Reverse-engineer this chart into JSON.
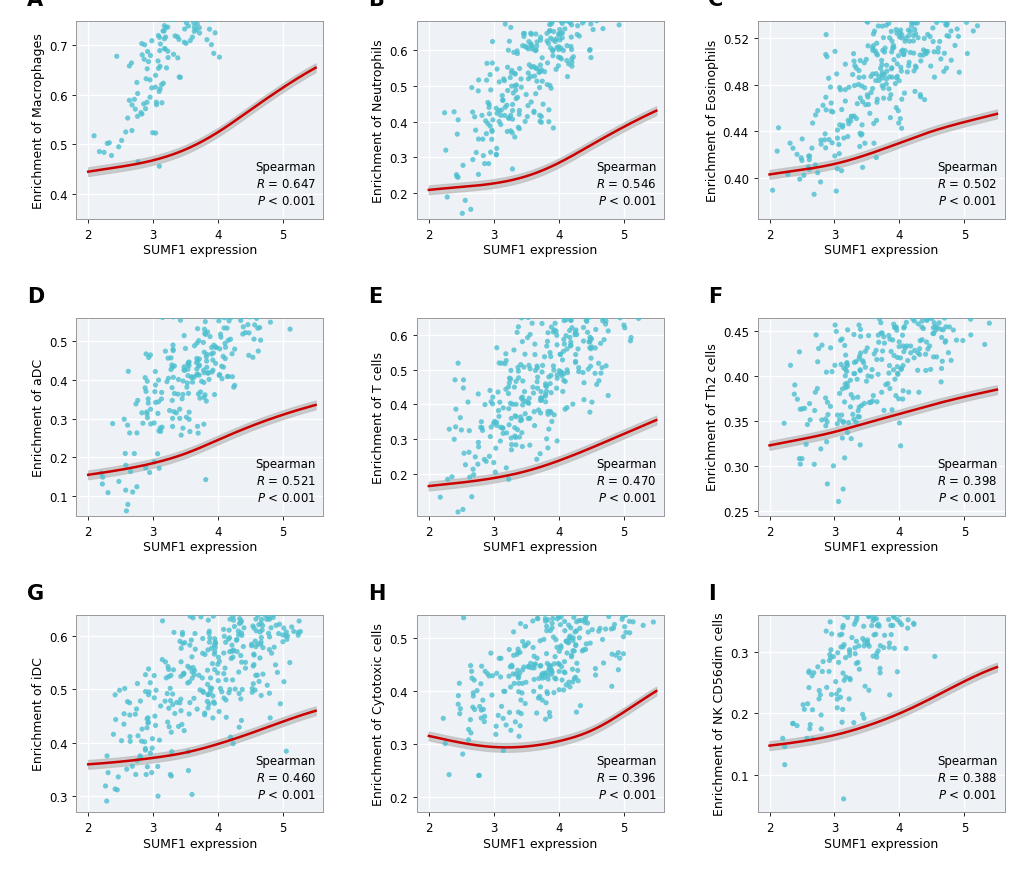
{
  "panels": [
    {
      "label": "A",
      "ylabel": "Enrichment of Macrophages",
      "R": "0.647",
      "ylim": [
        0.35,
        0.75
      ],
      "yticks": [
        0.4,
        0.5,
        0.6,
        0.7
      ],
      "curve_pts_x": [
        2.0,
        2.5,
        3.0,
        3.5,
        4.0,
        4.5,
        5.0,
        5.5
      ],
      "curve_pts_y": [
        0.445,
        0.455,
        0.468,
        0.49,
        0.525,
        0.57,
        0.615,
        0.655
      ],
      "scatter_seed": 101,
      "scatter_noise": 0.07,
      "scatter_base": 0.445,
      "scatter_slope": 0.21
    },
    {
      "label": "B",
      "ylabel": "Enrichment of Neutrophils",
      "R": "0.546",
      "ylim": [
        0.13,
        0.68
      ],
      "yticks": [
        0.2,
        0.3,
        0.4,
        0.5,
        0.6
      ],
      "curve_pts_x": [
        2.0,
        2.5,
        3.0,
        3.5,
        4.0,
        4.5,
        5.0,
        5.5
      ],
      "curve_pts_y": [
        0.21,
        0.218,
        0.228,
        0.248,
        0.285,
        0.335,
        0.385,
        0.43
      ],
      "scatter_seed": 202,
      "scatter_noise": 0.085,
      "scatter_base": 0.2,
      "scatter_slope": 0.22
    },
    {
      "label": "C",
      "ylabel": "Enrichment of Eosinophils",
      "R": "0.502",
      "ylim": [
        0.365,
        0.535
      ],
      "yticks": [
        0.4,
        0.44,
        0.48,
        0.52
      ],
      "curve_pts_x": [
        2.0,
        2.5,
        3.0,
        3.5,
        4.0,
        4.5,
        5.0,
        5.5
      ],
      "curve_pts_y": [
        0.403,
        0.407,
        0.412,
        0.42,
        0.43,
        0.44,
        0.448,
        0.455
      ],
      "scatter_seed": 303,
      "scatter_noise": 0.028,
      "scatter_base": 0.4,
      "scatter_slope": 0.055
    },
    {
      "label": "D",
      "ylabel": "Enrichment of aDC",
      "R": "0.521",
      "ylim": [
        0.05,
        0.56
      ],
      "yticks": [
        0.1,
        0.2,
        0.3,
        0.4,
        0.5
      ],
      "curve_pts_x": [
        2.0,
        2.5,
        3.0,
        3.5,
        4.0,
        4.5,
        5.0,
        5.5
      ],
      "curve_pts_y": [
        0.155,
        0.168,
        0.185,
        0.21,
        0.245,
        0.28,
        0.31,
        0.335
      ],
      "scatter_seed": 404,
      "scatter_noise": 0.095,
      "scatter_base": 0.145,
      "scatter_slope": 0.19
    },
    {
      "label": "E",
      "ylabel": "Enrichment of T cells",
      "R": "0.470",
      "ylim": [
        0.08,
        0.65
      ],
      "yticks": [
        0.2,
        0.3,
        0.4,
        0.5,
        0.6
      ],
      "curve_pts_x": [
        2.0,
        2.5,
        3.0,
        3.5,
        4.0,
        4.5,
        5.0,
        5.5
      ],
      "curve_pts_y": [
        0.165,
        0.175,
        0.188,
        0.208,
        0.238,
        0.275,
        0.315,
        0.355
      ],
      "scatter_seed": 505,
      "scatter_noise": 0.1,
      "scatter_base": 0.155,
      "scatter_slope": 0.19
    },
    {
      "label": "F",
      "ylabel": "Enrichment of Th2 cells",
      "R": "0.398",
      "ylim": [
        0.245,
        0.465
      ],
      "yticks": [
        0.25,
        0.3,
        0.35,
        0.4,
        0.45
      ],
      "curve_pts_x": [
        2.0,
        2.5,
        3.0,
        3.5,
        4.0,
        4.5,
        5.0,
        5.5
      ],
      "curve_pts_y": [
        0.323,
        0.33,
        0.338,
        0.348,
        0.358,
        0.368,
        0.377,
        0.385
      ],
      "scatter_seed": 606,
      "scatter_noise": 0.042,
      "scatter_base": 0.318,
      "scatter_slope": 0.062
    },
    {
      "label": "G",
      "ylabel": "Enrichment of iDC",
      "R": "0.460",
      "ylim": [
        0.27,
        0.64
      ],
      "yticks": [
        0.3,
        0.4,
        0.5,
        0.6
      ],
      "curve_pts_x": [
        2.0,
        2.5,
        3.0,
        3.5,
        4.0,
        4.5,
        5.0,
        5.5
      ],
      "curve_pts_y": [
        0.36,
        0.365,
        0.372,
        0.382,
        0.398,
        0.418,
        0.44,
        0.46
      ],
      "scatter_seed": 707,
      "scatter_noise": 0.07,
      "scatter_base": 0.355,
      "scatter_slope": 0.1
    },
    {
      "label": "H",
      "ylabel": "Enrichment of Cytotoxic cells",
      "R": "0.396",
      "ylim": [
        0.17,
        0.545
      ],
      "yticks": [
        0.2,
        0.3,
        0.4,
        0.5
      ],
      "curve_pts_x": [
        2.0,
        2.5,
        3.0,
        3.5,
        4.0,
        4.5,
        5.0,
        5.5
      ],
      "curve_pts_y": [
        0.315,
        0.302,
        0.294,
        0.295,
        0.305,
        0.325,
        0.36,
        0.4
      ],
      "scatter_seed": 808,
      "scatter_noise": 0.065,
      "scatter_base": 0.31,
      "scatter_slope": 0.09
    },
    {
      "label": "I",
      "ylabel": "Enrichment of NK CD56dim cells",
      "R": "0.388",
      "ylim": [
        0.04,
        0.36
      ],
      "yticks": [
        0.1,
        0.2,
        0.3
      ],
      "curve_pts_x": [
        2.0,
        2.5,
        3.0,
        3.5,
        4.0,
        4.5,
        5.0,
        5.5
      ],
      "curve_pts_y": [
        0.148,
        0.155,
        0.165,
        0.18,
        0.2,
        0.225,
        0.252,
        0.275
      ],
      "scatter_seed": 909,
      "scatter_noise": 0.055,
      "scatter_base": 0.142,
      "scatter_slope": 0.13
    }
  ],
  "xlabel": "SUMF1 expression",
  "xlim": [
    1.82,
    5.62
  ],
  "xticks": [
    2,
    3,
    4,
    5
  ],
  "dot_color": "#4DBFCF",
  "line_color": "#CC0000",
  "ci_color": "#BEBEBE",
  "n_points": 370,
  "ax_facecolor": "#EEF2F7",
  "background_color": "#FFFFFF",
  "grid_color": "#FFFFFF",
  "label_fontsize": 15,
  "tick_fontsize": 8.5,
  "axis_label_fontsize": 9,
  "annot_fontsize": 8.5
}
